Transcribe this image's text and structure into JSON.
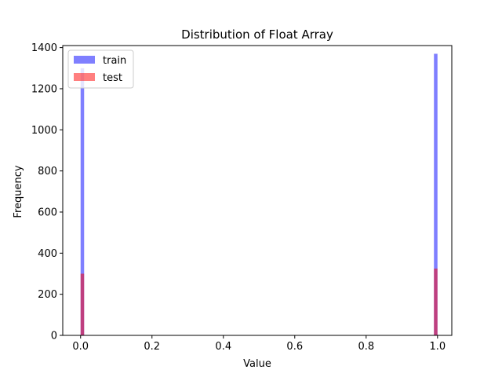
{
  "chart_data": {
    "type": "bar",
    "title": "Distribution of Float Array",
    "xlabel": "Value",
    "ylabel": "Frequency",
    "xlim": [
      -0.05,
      1.04
    ],
    "ylim": [
      0,
      1410
    ],
    "xticks": [
      0.0,
      0.2,
      0.4,
      0.6,
      0.8,
      1.0
    ],
    "xtick_labels": [
      "0.0",
      "0.2",
      "0.4",
      "0.6",
      "0.8",
      "1.0"
    ],
    "yticks": [
      0,
      200,
      400,
      600,
      800,
      1000,
      1200,
      1400
    ],
    "ytick_labels": [
      "0",
      "200",
      "400",
      "600",
      "800",
      "1000",
      "1200",
      "1400"
    ],
    "grid": false,
    "legend_position": "top-left",
    "bin_width": 0.0099,
    "series": [
      {
        "name": "train",
        "color": "#0000ff",
        "alpha": 0.5,
        "bins": [
          {
            "x": 0.0,
            "count": 1300
          },
          {
            "x": 0.99,
            "count": 1370
          }
        ]
      },
      {
        "name": "test",
        "color": "#ff0000",
        "alpha": 0.5,
        "bins": [
          {
            "x": 0.0,
            "count": 300
          },
          {
            "x": 0.99,
            "count": 325
          }
        ]
      }
    ]
  }
}
